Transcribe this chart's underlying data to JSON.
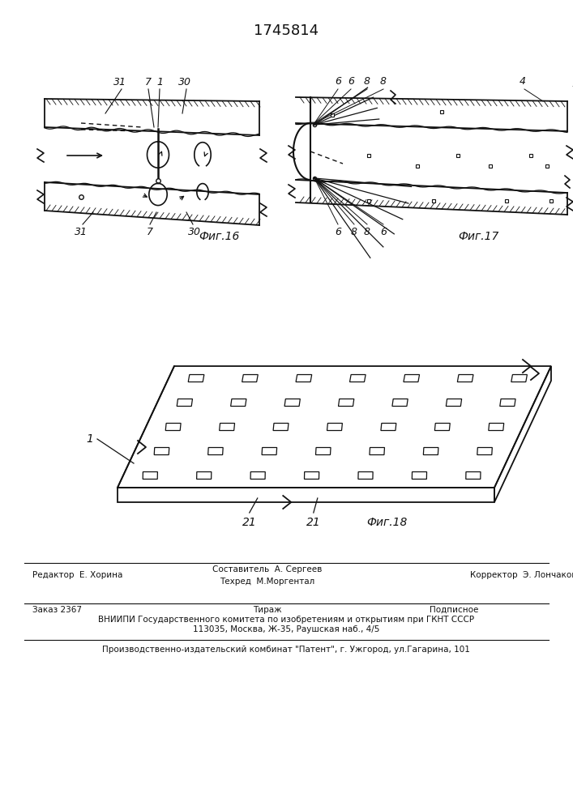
{
  "patent_number": "1745814",
  "fig16_label": "Фиг.16",
  "fig17_label": "Фиг.17",
  "fig18_label": "Фиг.18",
  "footer_line1_left": "Редактор  Е. Хорина",
  "footer_line1_c1": "Составитель  А. Сергеев",
  "footer_line1_c2": "Техред  М.Моргентал",
  "footer_line1_right": "Корректор  Э. Лончакова",
  "footer_line2_col1": "Заказ 2367",
  "footer_line2_col2": "Тираж",
  "footer_line2_col3": "Подписное",
  "footer_line3": "ВНИИПИ Государственного комитета по изобретениям и открытиям при ГКНТ СССР",
  "footer_line4": "113035, Москва, Ж-35, Раушская наб., 4/5",
  "footer_line5": "Производственно-издательский комбинат \"Патент\", г. Ужгород, ул.Гагарина, 101",
  "bg_color": "#ffffff",
  "line_color": "#111111",
  "text_color": "#111111"
}
